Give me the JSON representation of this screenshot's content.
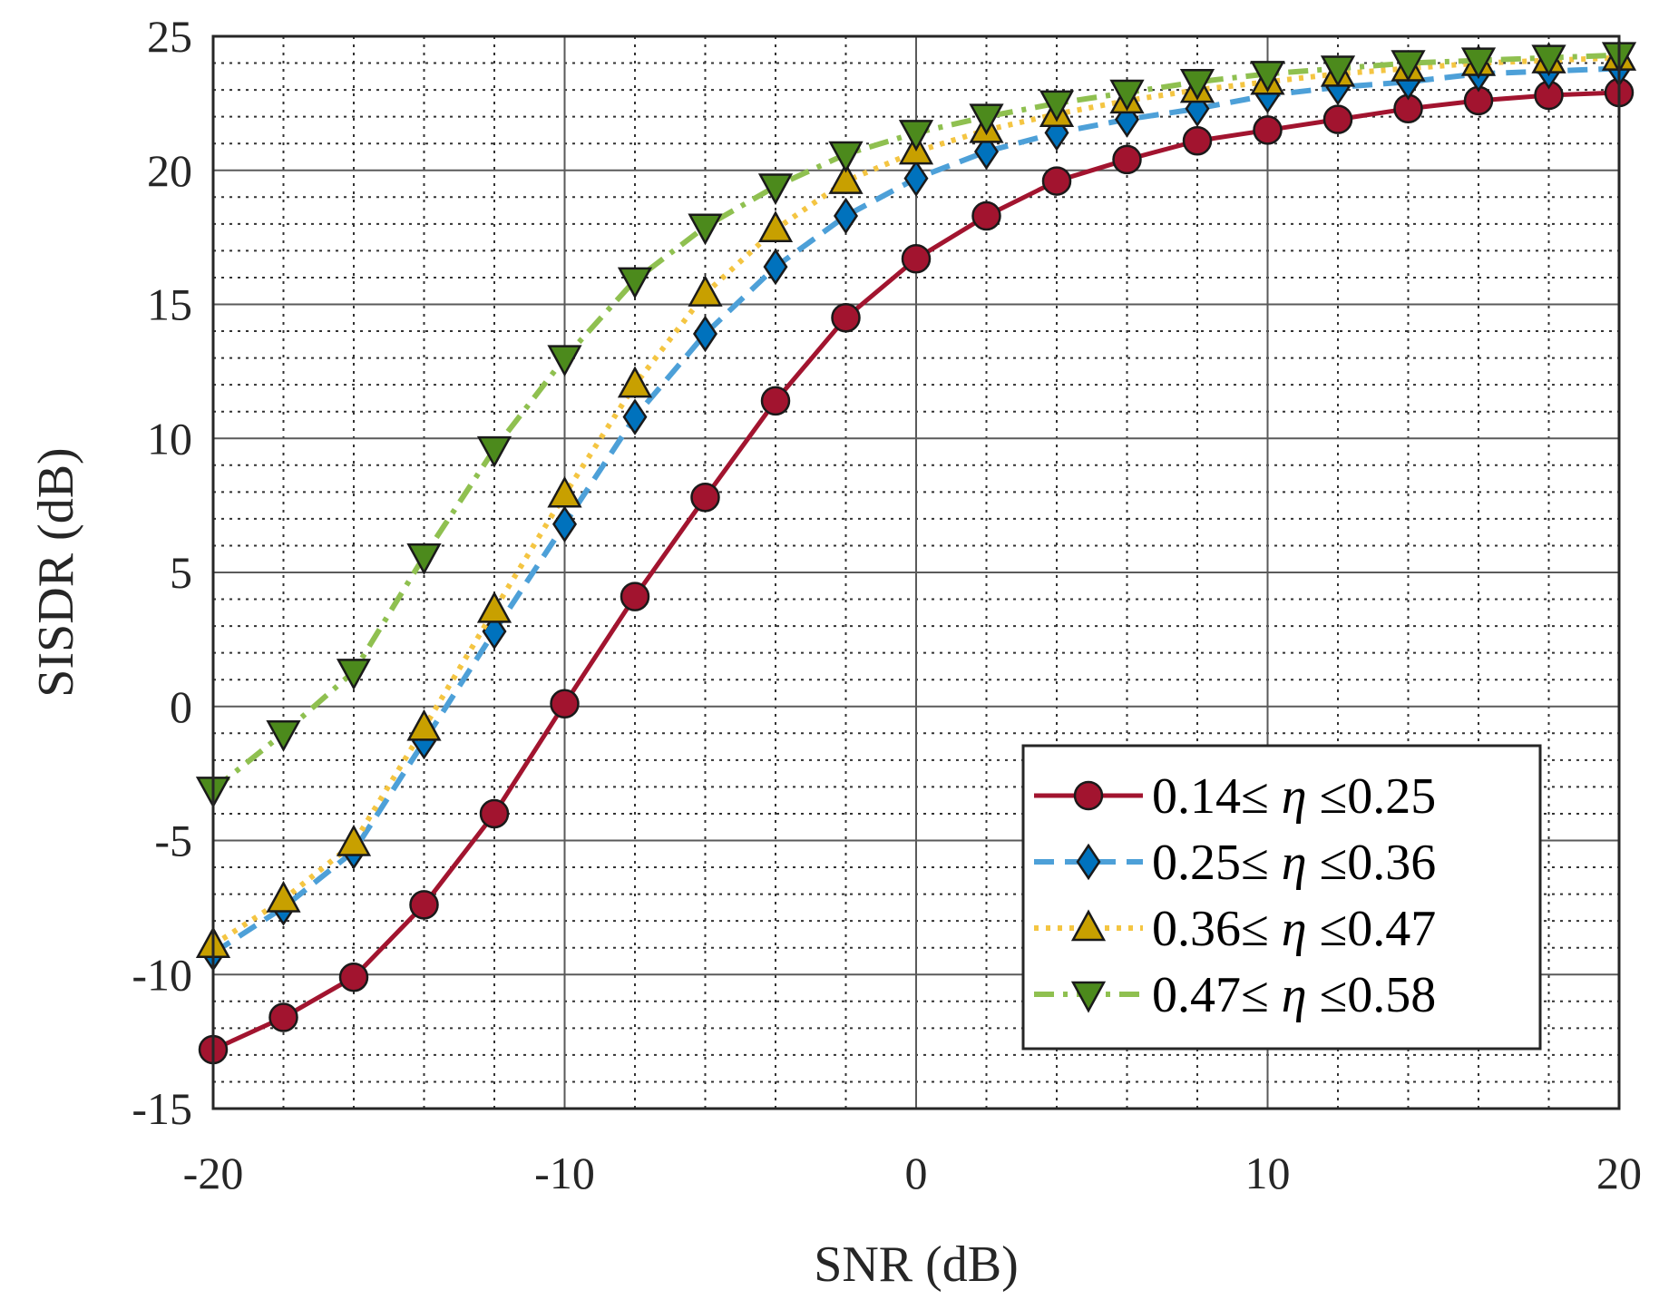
{
  "chart_data": {
    "type": "line",
    "title": "",
    "xlabel": "SNR (dB)",
    "ylabel": "SISDR (dB)",
    "xlim": [
      -20,
      20
    ],
    "ylim": [
      -15,
      25
    ],
    "xticks": [
      -20,
      -10,
      0,
      10,
      20
    ],
    "yticks": [
      -15,
      -10,
      -5,
      0,
      5,
      10,
      15,
      20,
      25
    ],
    "xtick_labels": [
      "-20",
      "-10",
      "0",
      "10",
      "20"
    ],
    "ytick_labels": [
      "-15",
      "-10",
      "-5",
      "0",
      "5",
      "10",
      "15",
      "20",
      "25"
    ],
    "grid": true,
    "minor_grid": true,
    "legend_location": "lower-right",
    "x": [
      -20,
      -18,
      -16,
      -14,
      -12,
      -10,
      -8,
      -6,
      -4,
      -2,
      0,
      2,
      4,
      6,
      8,
      10,
      12,
      14,
      16,
      18,
      20
    ],
    "series": [
      {
        "name": "0.14≤ η ≤0.25",
        "label_prefix": "0.14≤ ",
        "label_symbol": "η",
        "label_suffix": " ≤0.25",
        "color": "#A2142F",
        "marker": "circle",
        "line_style": "solid",
        "values": [
          -12.8,
          -11.6,
          -10.1,
          -7.4,
          -4.0,
          0.1,
          4.1,
          7.8,
          11.4,
          14.5,
          16.7,
          18.3,
          19.6,
          20.4,
          21.1,
          21.5,
          21.9,
          22.3,
          22.6,
          22.8,
          22.9
        ]
      },
      {
        "name": "0.25≤ η ≤0.36",
        "label_prefix": "0.25≤ ",
        "label_symbol": "η",
        "label_suffix": " ≤0.36",
        "color": "#0072BD",
        "line_color": "#4DA0D8",
        "marker": "diamond",
        "line_style": "dashed",
        "values": [
          -9.2,
          -7.5,
          -5.4,
          -1.3,
          2.8,
          6.8,
          10.8,
          13.9,
          16.4,
          18.3,
          19.7,
          20.7,
          21.4,
          21.9,
          22.3,
          22.8,
          23.1,
          23.3,
          23.6,
          23.7,
          23.8
        ]
      },
      {
        "name": "0.36≤ η ≤0.47",
        "label_prefix": "0.36≤ ",
        "label_symbol": "η",
        "label_suffix": " ≤0.47",
        "color": "#C8A000",
        "line_color": "#F4C542",
        "marker": "triangle-up",
        "line_style": "dotted",
        "values": [
          -8.9,
          -7.2,
          -5.1,
          -0.8,
          3.6,
          7.9,
          12.0,
          15.4,
          17.8,
          19.6,
          20.7,
          21.5,
          22.1,
          22.6,
          23.0,
          23.3,
          23.6,
          23.8,
          24.0,
          24.1,
          24.2
        ]
      },
      {
        "name": "0.47≤ η ≤0.58",
        "label_prefix": "0.47≤ ",
        "label_symbol": "η",
        "label_suffix": " ≤0.58",
        "color": "#4C8A1C",
        "line_color": "#8FC050",
        "marker": "triangle-down",
        "line_style": "dashdot",
        "values": [
          -3.1,
          -1.0,
          1.3,
          5.6,
          9.6,
          13.0,
          15.9,
          17.9,
          19.4,
          20.6,
          21.4,
          22.0,
          22.5,
          22.9,
          23.3,
          23.6,
          23.8,
          24.0,
          24.1,
          24.2,
          24.3
        ]
      }
    ]
  }
}
